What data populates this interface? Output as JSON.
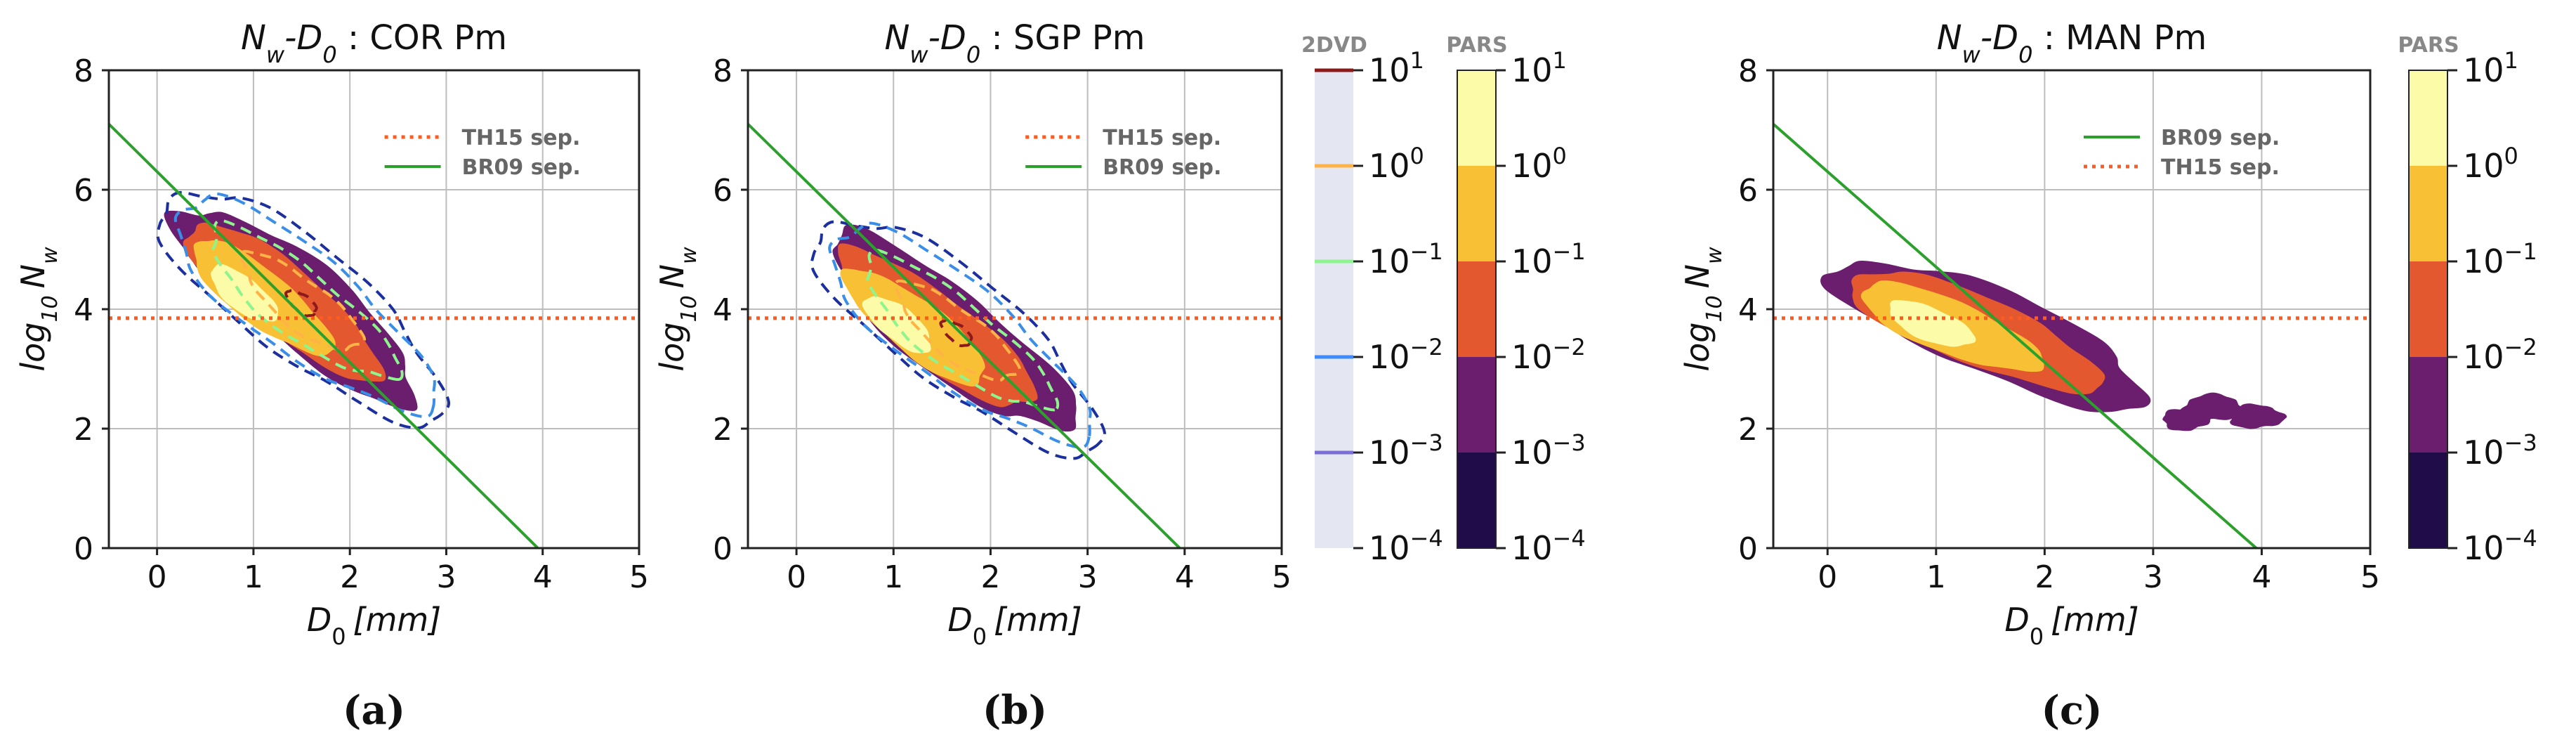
{
  "colors": {
    "pars_levels": [
      "#1f0c48",
      "#6b1d6e",
      "#e3582e",
      "#f8c034",
      "#fcfba8"
    ],
    "dvd_levels": [
      "#7b6fd6",
      "#3d8bff",
      "#8ef58e",
      "#ffb347",
      "#8b1a1a"
    ],
    "th15_line": "#ff5a1f",
    "br09_line": "#2ca02c",
    "outline_dark": "#1c2f9e",
    "outline_light": "#3a8ee8"
  },
  "panel_labels": [
    "(a)",
    "(b)",
    "(c)"
  ],
  "colorbar_labels": {
    "pars": "PARS",
    "dvd": "2DVD",
    "ticks": [
      "10^1",
      "10^0",
      "10^-1",
      "10^-2",
      "10^-3",
      "10^-4"
    ]
  },
  "chart_data": [
    {
      "type": "contour",
      "title_prefix": "Nw-D0 :",
      "title_site": "COR Pm",
      "xlabel": "D0 [mm]",
      "ylabel": "log10 Nw",
      "xlim": [
        -0.5,
        5
      ],
      "ylim": [
        0,
        8
      ],
      "xticks": [
        0,
        1,
        2,
        3,
        4,
        5
      ],
      "yticks": [
        0,
        2,
        4,
        6,
        8
      ],
      "grid": true,
      "legend_position": "upper-right",
      "legend": [
        "TH15 sep.",
        "BR09 sep."
      ],
      "th15_separator_log10Nw": 3.85,
      "br09_separator": {
        "x": [
          -0.5,
          3.95
        ],
        "y": [
          7.1,
          0
        ]
      },
      "pars_density_peak": {
        "D0": 0.9,
        "log10Nw": 4.1
      },
      "dvd_contours": true
    },
    {
      "type": "contour",
      "title_prefix": "Nw-D0 :",
      "title_site": "SGP Pm",
      "xlabel": "D0 [mm]",
      "ylabel": "log10 Nw",
      "xlim": [
        -0.5,
        5
      ],
      "ylim": [
        0,
        8
      ],
      "xticks": [
        0,
        1,
        2,
        3,
        4,
        5
      ],
      "yticks": [
        0,
        2,
        4,
        6,
        8
      ],
      "grid": true,
      "legend_position": "upper-right",
      "legend": [
        "TH15 sep.",
        "BR09 sep."
      ],
      "th15_separator_log10Nw": 3.85,
      "br09_separator": {
        "x": [
          -0.5,
          3.95
        ],
        "y": [
          7.1,
          0
        ]
      },
      "pars_density_peak": {
        "D0": 1.05,
        "log10Nw": 3.6
      },
      "dvd_contours": true
    },
    {
      "type": "contour",
      "title_prefix": "Nw-D0 :",
      "title_site": "MAN Pm",
      "xlabel": "D0 [mm]",
      "ylabel": "log10 Nw",
      "xlim": [
        -0.5,
        5
      ],
      "ylim": [
        0,
        8
      ],
      "xticks": [
        0,
        1,
        2,
        3,
        4,
        5
      ],
      "yticks": [
        0,
        2,
        4,
        6,
        8
      ],
      "grid": true,
      "legend_position": "upper-right",
      "legend": [
        "BR09 sep.",
        "TH15 sep."
      ],
      "th15_separator_log10Nw": 3.85,
      "br09_separator": {
        "x": [
          -0.5,
          3.95
        ],
        "y": [
          7.1,
          0
        ]
      },
      "pars_density_peak": {
        "D0": 0.95,
        "log10Nw": 3.6
      },
      "dvd_contours": false
    }
  ]
}
